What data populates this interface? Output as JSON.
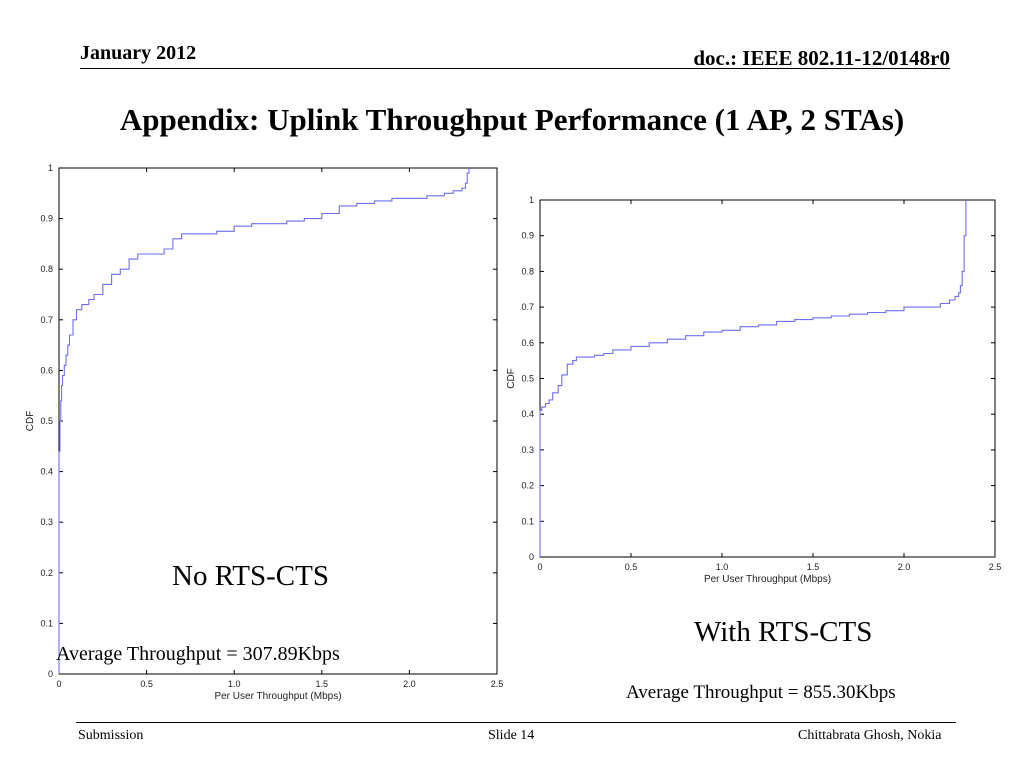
{
  "header": {
    "date": "January 2012",
    "doc": "doc.: IEEE 802.11-12/0148r0"
  },
  "title": "Appendix: Uplink Throughput Performance (1 AP, 2 STAs)",
  "footer": {
    "left": "Submission",
    "center": "Slide 14",
    "right": "Chittabrata Ghosh, Nokia"
  },
  "colors": {
    "line": "#6f6ff0",
    "axis": "#000000"
  },
  "chart_data": [
    {
      "type": "line",
      "xlabel": "Per User Throughput (Mbps)",
      "ylabel": "CDF",
      "xlim": [
        0,
        2.5
      ],
      "ylim": [
        0,
        1
      ],
      "xticks": [
        "0",
        "0.5",
        "1.0",
        "1.5",
        "2.0",
        "2.5"
      ],
      "yticks": [
        "0",
        "0.1",
        "0.2",
        "0.3",
        "0.4",
        "0.5",
        "0.6",
        "0.7",
        "0.8",
        "0.9",
        "1"
      ],
      "caption": "No RTS-CTS",
      "average": "Average Throughput = 307.89Kbps",
      "series": [
        {
          "x": [
            0,
            0,
            0.005,
            0.01,
            0.015,
            0.02,
            0.03,
            0.04,
            0.05,
            0.06,
            0.08,
            0.1,
            0.13,
            0.17,
            0.2,
            0.25,
            0.3,
            0.35,
            0.4,
            0.45,
            0.5,
            0.55,
            0.6,
            0.65,
            0.7,
            0.8,
            0.9,
            1.0,
            1.1,
            1.2,
            1.3,
            1.4,
            1.5,
            1.6,
            1.7,
            1.8,
            1.9,
            2.0,
            2.1,
            2.2,
            2.25,
            2.3,
            2.32,
            2.33,
            2.34
          ],
          "y": [
            0,
            0.44,
            0.5,
            0.54,
            0.57,
            0.59,
            0.61,
            0.63,
            0.65,
            0.67,
            0.7,
            0.72,
            0.73,
            0.74,
            0.75,
            0.77,
            0.79,
            0.8,
            0.82,
            0.83,
            0.83,
            0.83,
            0.84,
            0.86,
            0.87,
            0.87,
            0.875,
            0.885,
            0.89,
            0.89,
            0.895,
            0.9,
            0.91,
            0.925,
            0.93,
            0.935,
            0.94,
            0.94,
            0.945,
            0.95,
            0.955,
            0.96,
            0.97,
            0.99,
            1.0
          ]
        }
      ]
    },
    {
      "type": "line",
      "xlabel": "Per User Throughput (Mbps)",
      "ylabel": "CDF",
      "xlim": [
        0,
        2.5
      ],
      "ylim": [
        0,
        1
      ],
      "xticks": [
        "0",
        "0.5",
        "1.0",
        "1.5",
        "2.0",
        "2.5"
      ],
      "yticks": [
        "0",
        "0.1",
        "0.2",
        "0.3",
        "0.4",
        "0.5",
        "0.6",
        "0.7",
        "0.8",
        "0.9",
        "1"
      ],
      "caption": "With RTS-CTS",
      "average": "Average Throughput = 855.30Kbps",
      "series": [
        {
          "x": [
            0,
            0,
            0.01,
            0.03,
            0.05,
            0.07,
            0.1,
            0.12,
            0.15,
            0.18,
            0.2,
            0.25,
            0.3,
            0.35,
            0.4,
            0.5,
            0.6,
            0.7,
            0.8,
            0.9,
            1.0,
            1.1,
            1.2,
            1.3,
            1.4,
            1.5,
            1.6,
            1.7,
            1.8,
            1.9,
            2.0,
            2.1,
            2.2,
            2.25,
            2.28,
            2.3,
            2.31,
            2.32,
            2.33,
            2.34
          ],
          "y": [
            0,
            0.41,
            0.42,
            0.43,
            0.44,
            0.46,
            0.48,
            0.51,
            0.54,
            0.55,
            0.56,
            0.56,
            0.565,
            0.57,
            0.58,
            0.59,
            0.6,
            0.61,
            0.62,
            0.63,
            0.635,
            0.645,
            0.65,
            0.66,
            0.665,
            0.67,
            0.675,
            0.68,
            0.685,
            0.69,
            0.7,
            0.7,
            0.71,
            0.72,
            0.73,
            0.74,
            0.76,
            0.8,
            0.9,
            1.0
          ]
        }
      ]
    }
  ]
}
